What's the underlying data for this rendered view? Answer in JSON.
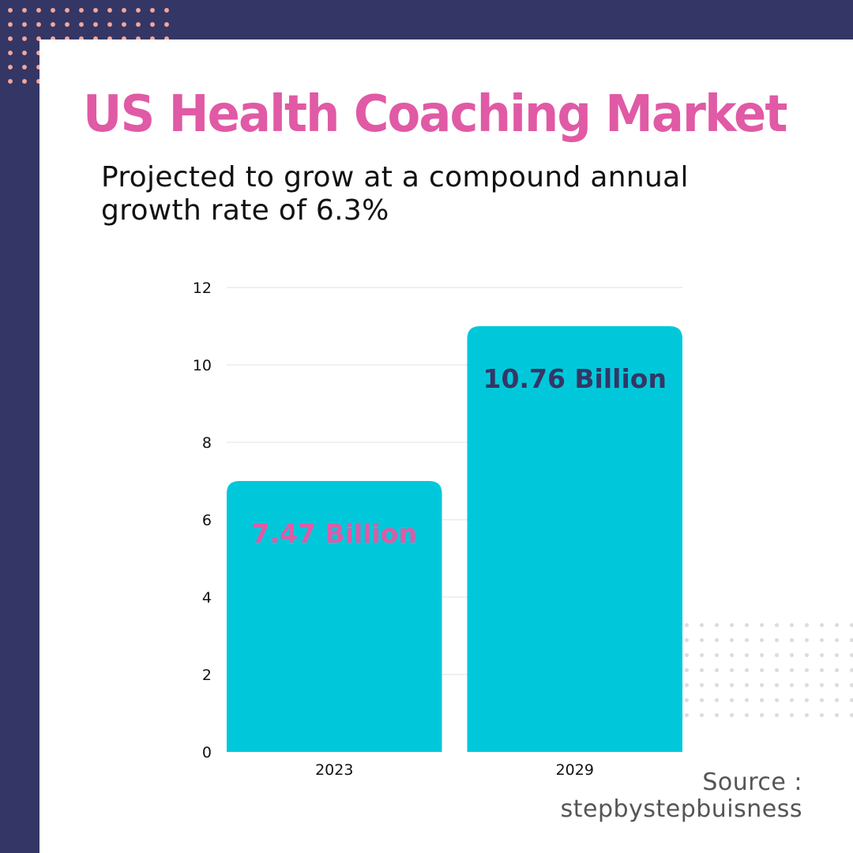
{
  "header": {
    "title": "US Health Coaching Market",
    "subtitle": "Projected to grow at a compound annual growth rate of 6.3%"
  },
  "source": {
    "label": "Source :",
    "name": "stepbystepbuisness"
  },
  "colors": {
    "background": "#343666",
    "card": "#ffffff",
    "title": "#e05aa5",
    "bar": "#00c8da",
    "dots_top": "#f4a79a"
  },
  "chart_data": {
    "type": "bar",
    "categories": [
      "2023",
      "2029"
    ],
    "values": [
      7,
      11
    ],
    "data_labels": [
      "7.47 Billion",
      "10.76 Billion"
    ],
    "data_label_colors": [
      "#e05aa5",
      "#343666"
    ],
    "ylim": [
      0,
      12
    ],
    "yticks": [
      0,
      2,
      4,
      6,
      8,
      10,
      12
    ],
    "grid": true,
    "legend": "none",
    "bar_color": "#00c8da"
  }
}
